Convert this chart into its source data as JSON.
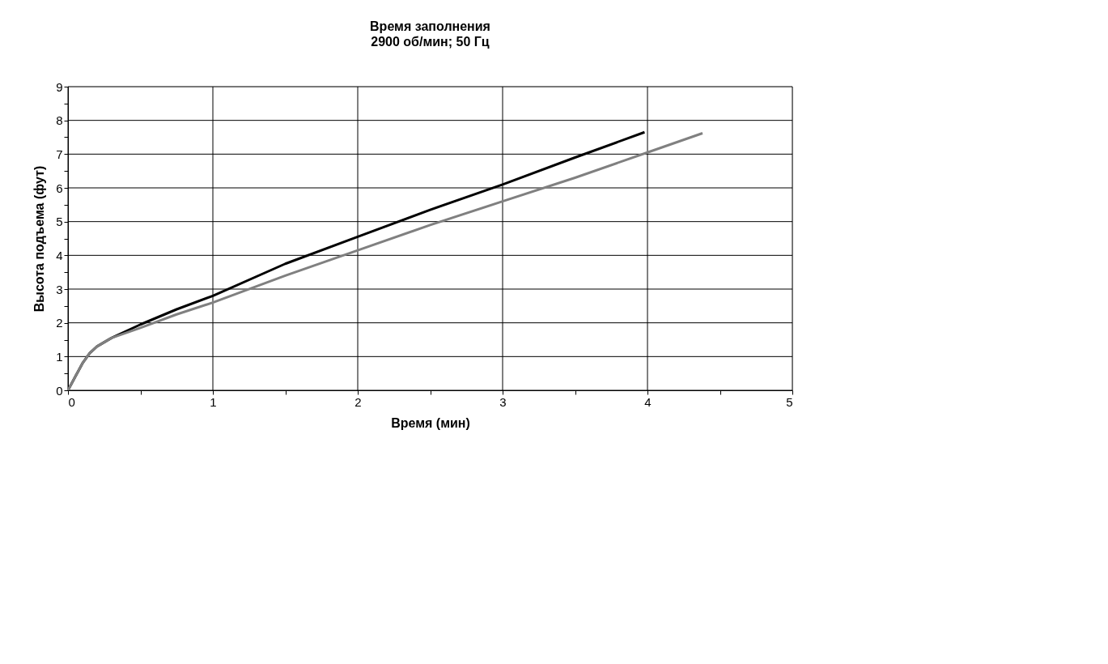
{
  "chart_data": {
    "type": "line",
    "title": "Время заполнения",
    "subtitle": "2900 об/мин; 50 Гц",
    "xlabel": "Время (мин)",
    "ylabel": "Высота подъема (фут)",
    "xlim": [
      0,
      5
    ],
    "ylim": [
      0,
      9
    ],
    "xticks": [
      0,
      {
        "value": 0.5,
        "label": null
      },
      1,
      {
        "value": 1.5,
        "label": null
      },
      2,
      {
        "value": 2.5,
        "label": null
      },
      3,
      {
        "value": 3.5,
        "label": null
      },
      4,
      {
        "value": 4.5,
        "label": null
      },
      5
    ],
    "yticks": [
      0,
      {
        "value": 0.5,
        "label": null
      },
      1,
      {
        "value": 1.5,
        "label": null
      },
      2,
      {
        "value": 2.5,
        "label": null
      },
      3,
      {
        "value": 3.5,
        "label": null
      },
      4,
      {
        "value": 4.5,
        "label": null
      },
      5,
      {
        "value": 5.5,
        "label": null
      },
      6,
      {
        "value": 6.5,
        "label": null
      },
      7,
      {
        "value": 7.5,
        "label": null
      },
      8,
      {
        "value": 8.5,
        "label": null
      },
      9
    ],
    "grid": true,
    "marker": "none",
    "line_style": "solid",
    "series": [
      {
        "color": "#000000",
        "x": [
          0,
          0.05,
          0.1,
          0.15,
          0.2,
          0.3,
          0.5,
          0.75,
          1.0,
          1.5,
          2.0,
          2.5,
          3.0,
          3.5,
          3.98
        ],
        "values": [
          0,
          0.4,
          0.8,
          1.1,
          1.3,
          1.55,
          1.95,
          2.4,
          2.8,
          3.75,
          4.55,
          5.35,
          6.1,
          6.9,
          7.65
        ]
      },
      {
        "color": "#808080",
        "x": [
          0,
          0.05,
          0.1,
          0.15,
          0.2,
          0.3,
          0.5,
          0.75,
          1.0,
          1.5,
          2.0,
          2.5,
          3.0,
          3.5,
          4.0,
          4.38
        ],
        "values": [
          0,
          0.4,
          0.8,
          1.1,
          1.3,
          1.55,
          1.85,
          2.25,
          2.6,
          3.4,
          4.15,
          4.9,
          5.6,
          6.3,
          7.05,
          7.62
        ]
      }
    ]
  }
}
